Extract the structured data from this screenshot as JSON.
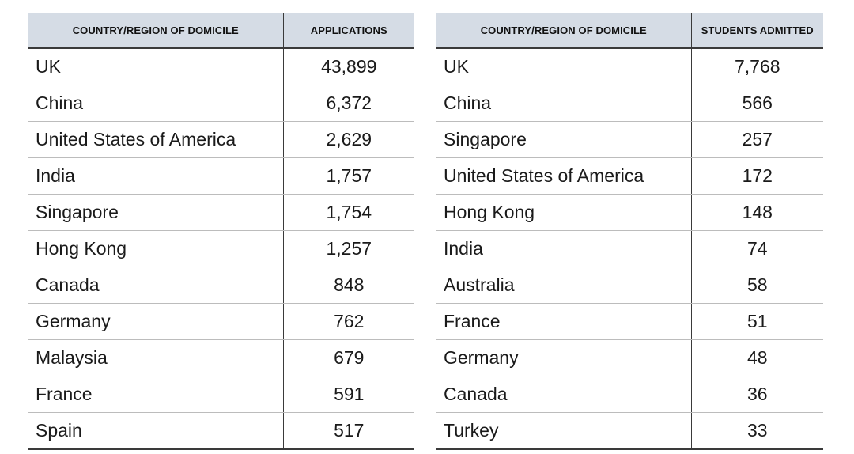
{
  "applications_table": {
    "headers": [
      "COUNTRY/REGION OF DOMICILE",
      "APPLICATIONS"
    ],
    "rows": [
      [
        "UK",
        "43,899"
      ],
      [
        "China",
        "6,372"
      ],
      [
        "United States of America",
        "2,629"
      ],
      [
        "India",
        "1,757"
      ],
      [
        "Singapore",
        "1,754"
      ],
      [
        "Hong Kong",
        "1,257"
      ],
      [
        "Canada",
        "848"
      ],
      [
        "Germany",
        "762"
      ],
      [
        "Malaysia",
        "679"
      ],
      [
        "France",
        "591"
      ],
      [
        "Spain",
        "517"
      ]
    ]
  },
  "admitted_table": {
    "headers": [
      "COUNTRY/REGION OF DOMICILE",
      "STUDENTS ADMITTED"
    ],
    "rows": [
      [
        "UK",
        "7,768"
      ],
      [
        "China",
        "566"
      ],
      [
        "Singapore",
        "257"
      ],
      [
        "United States of America",
        "172"
      ],
      [
        "Hong Kong",
        "148"
      ],
      [
        "India",
        "74"
      ],
      [
        "Australia",
        "58"
      ],
      [
        "France",
        "51"
      ],
      [
        "Germany",
        "48"
      ],
      [
        "Canada",
        "36"
      ],
      [
        "Turkey",
        "33"
      ]
    ]
  },
  "colors": {
    "header_background": "#d5dce5",
    "rule_dark": "#3a3a3a",
    "rule_light": "#bcbcbc"
  }
}
